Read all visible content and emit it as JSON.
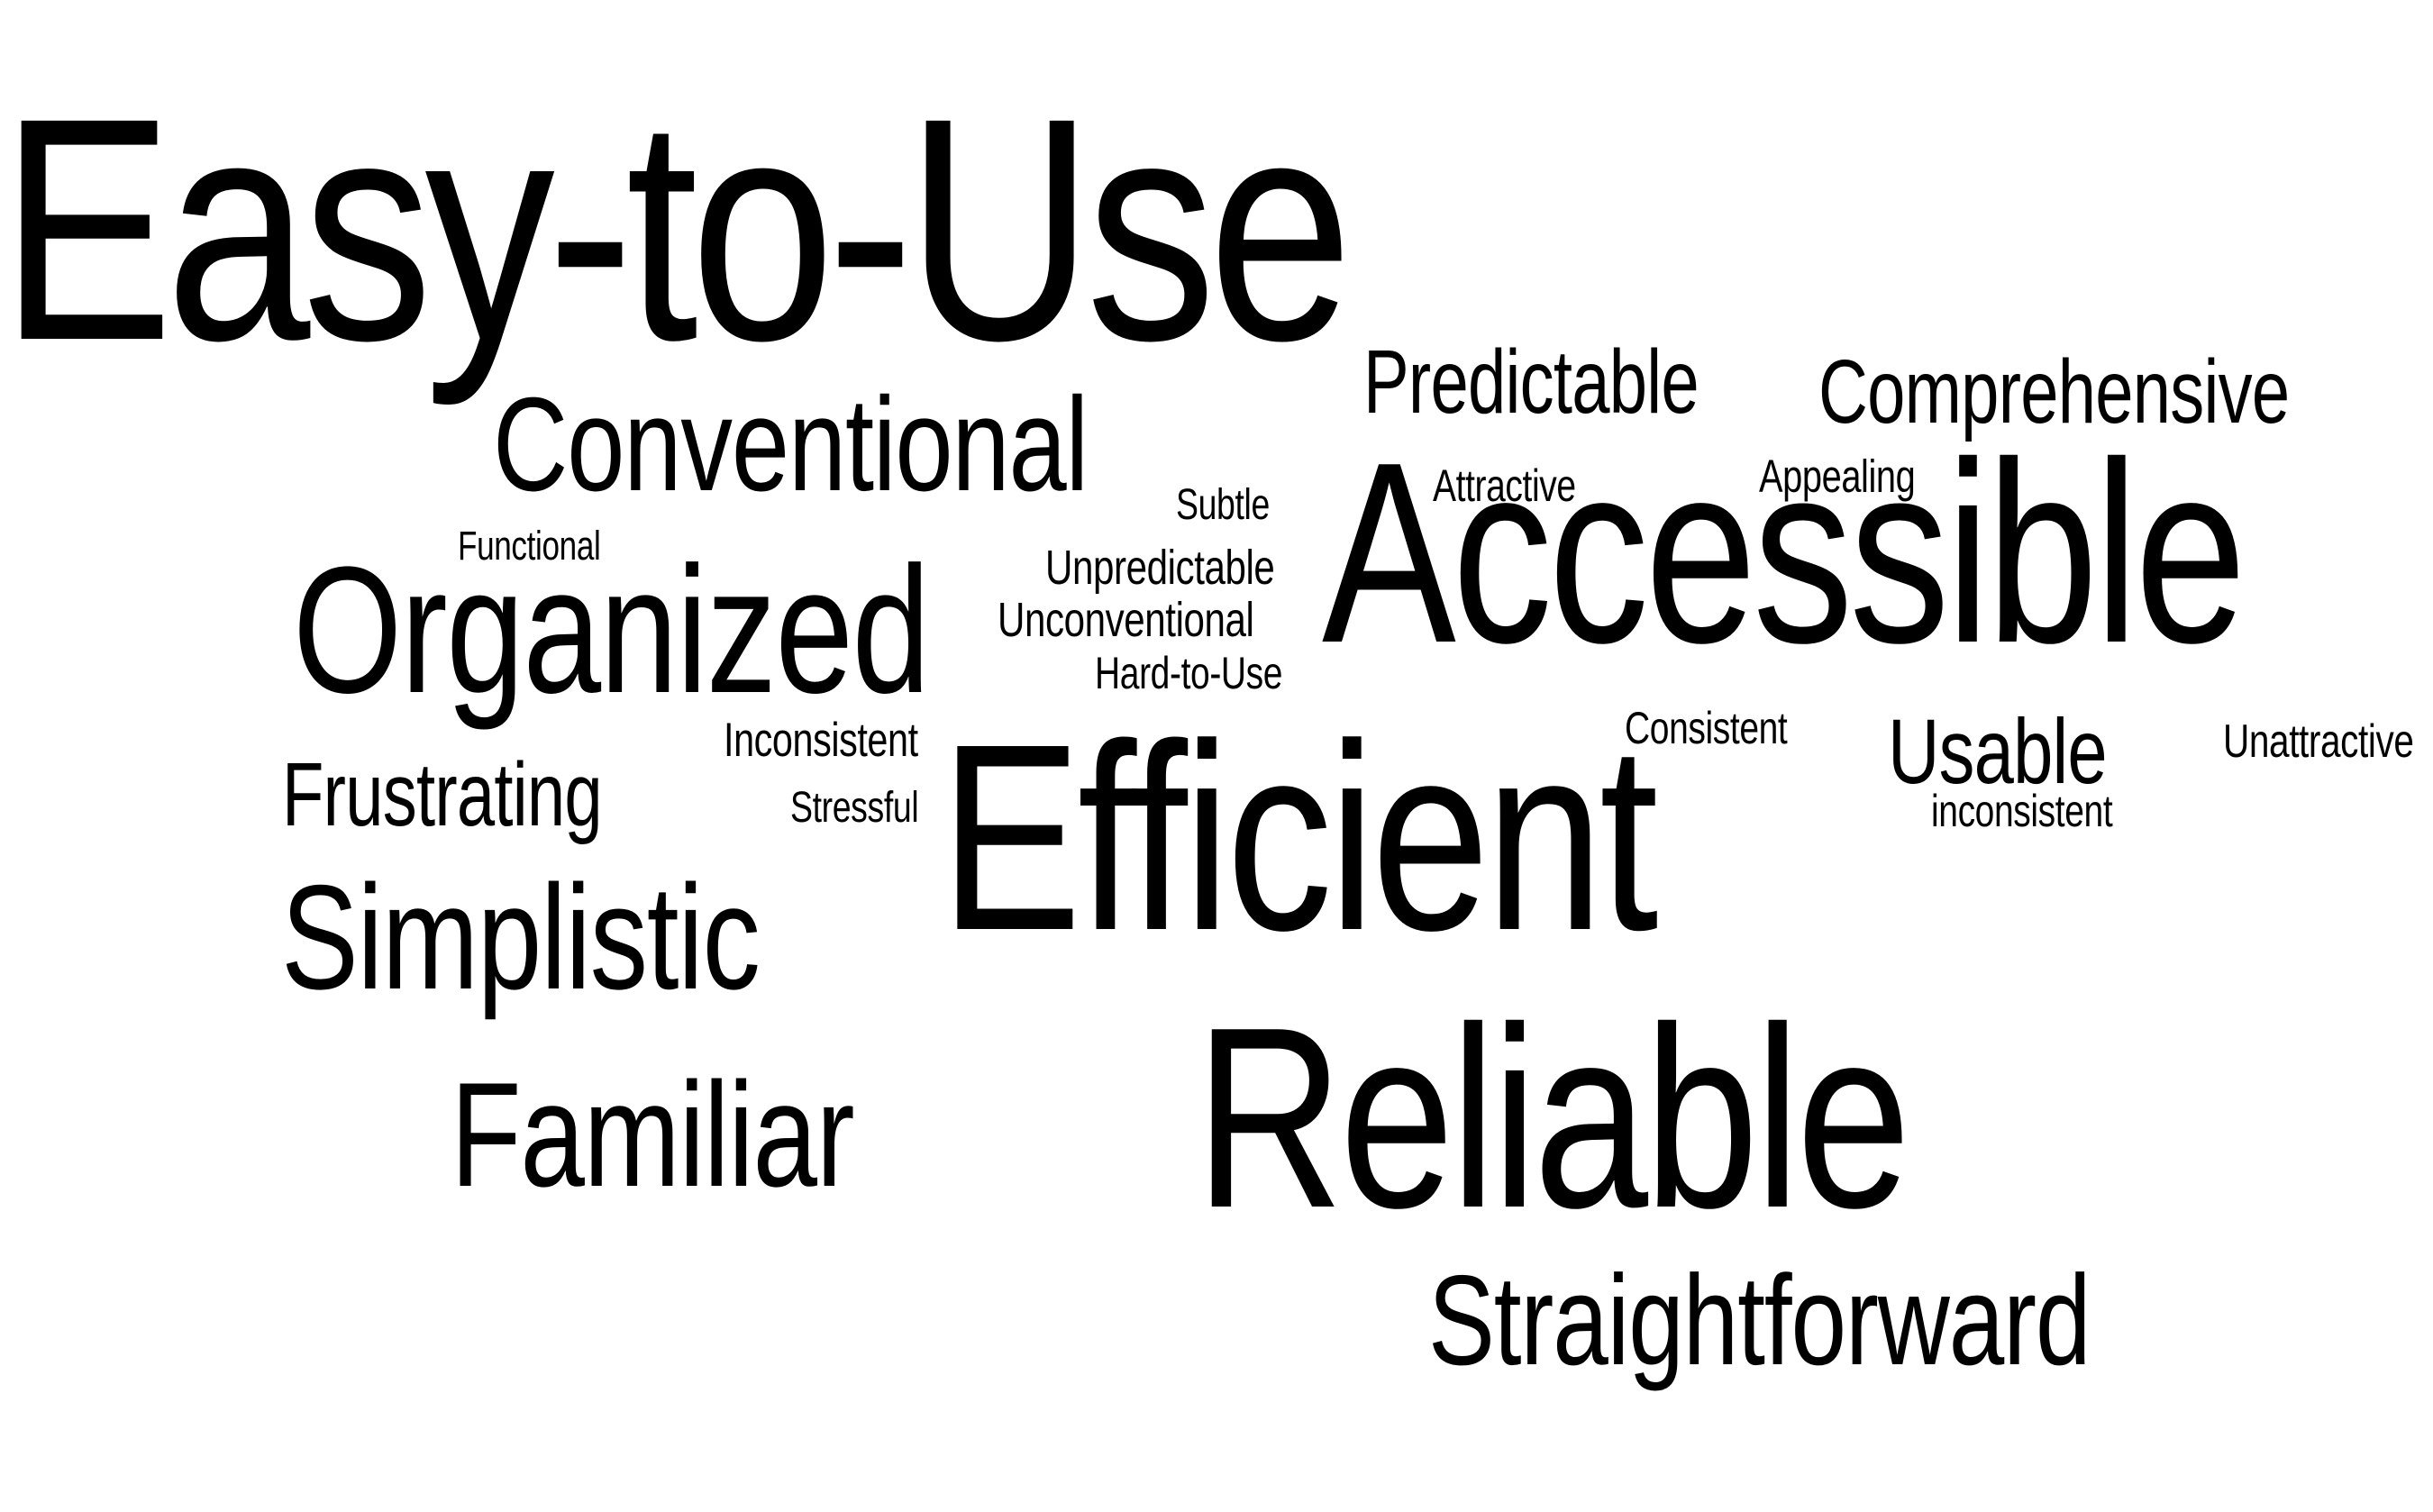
{
  "background": "#ffffff",
  "text_color": "#000000",
  "words": {
    "easy_to_use": "Easy-to-Use",
    "accessible": "Accessible",
    "efficient": "Efficient",
    "reliable": "Reliable",
    "conventional": "Conventional",
    "organized": "Organized",
    "simplistic": "Simplistic",
    "familiar": "Familiar",
    "straightforward": "Straightforward",
    "usable": "Usable",
    "predictable": "Predictable",
    "comprehensive": "Comprehensive",
    "frustrating": "Frustrating",
    "subtle": "Subtle",
    "functional": "Functional",
    "attractive": "Attractive",
    "appealing": "Appealing",
    "unpredictable": "Unpredictable",
    "unconventional": "Unconventional",
    "hard_to_use": "Hard-to-Use",
    "inconsistent_cap": "Inconsistent",
    "consistent": "Consistent",
    "unattractive": "Unattractive",
    "inconsistent_lower": "inconsistent",
    "stressful": "Stressful"
  }
}
